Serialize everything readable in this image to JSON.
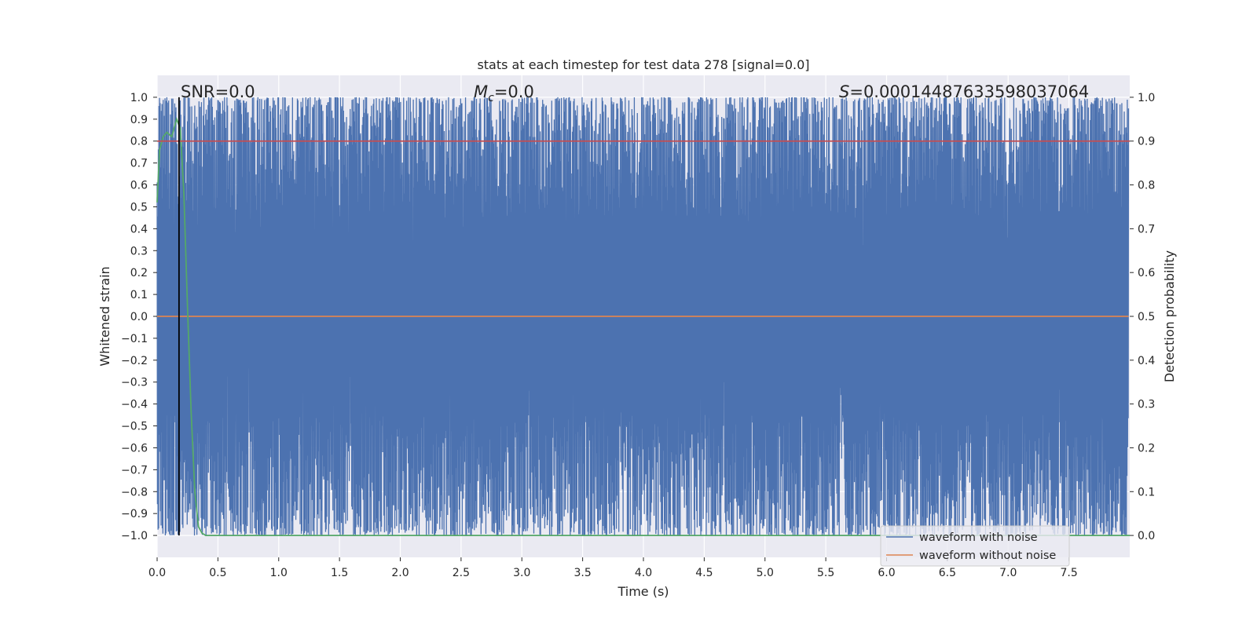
{
  "chart_data": {
    "type": "line",
    "title": "stats at each timestep for test data 278 [signal=0.0]",
    "xlabel": "Time (s)",
    "ylabel": "Whitened strain",
    "y2label": "Detection probability",
    "xlim": [
      0.0,
      8.0
    ],
    "ylim": [
      -1.1,
      1.1
    ],
    "y2lim": [
      -0.05,
      1.05
    ],
    "x_ticks": [
      0.0,
      0.5,
      1.0,
      1.5,
      2.0,
      2.5,
      3.0,
      3.5,
      4.0,
      4.5,
      5.0,
      5.5,
      6.0,
      6.5,
      7.0,
      7.5
    ],
    "x_tick_labels": [
      "0.0",
      "0.5",
      "1.0",
      "1.5",
      "2.0",
      "2.5",
      "3.0",
      "3.5",
      "4.0",
      "4.5",
      "5.0",
      "5.5",
      "6.0",
      "6.5",
      "7.0",
      "7.5"
    ],
    "y_ticks": [
      1.0,
      0.9,
      0.8,
      0.7,
      0.6,
      0.5,
      0.4,
      0.3,
      0.2,
      0.1,
      0.0,
      -0.1,
      -0.2,
      -0.3,
      -0.4,
      -0.5,
      -0.6,
      -0.7,
      -0.8,
      -0.9,
      -1.0
    ],
    "y_tick_labels": [
      "1.0",
      "0.9",
      "0.8",
      "0.7",
      "0.6",
      "0.5",
      "0.4",
      "0.3",
      "0.2",
      "0.1",
      "0.0",
      "−0.1",
      "−0.2",
      "−0.3",
      "−0.4",
      "−0.5",
      "−0.6",
      "−0.7",
      "−0.8",
      "−0.9",
      "−1.0"
    ],
    "y2_ticks": [
      1.0,
      0.9,
      0.8,
      0.7,
      0.6,
      0.5,
      0.4,
      0.3,
      0.2,
      0.1,
      0.0
    ],
    "y2_tick_labels": [
      "1.0",
      "0.9",
      "0.8",
      "0.7",
      "0.6",
      "0.5",
      "0.4",
      "0.3",
      "0.2",
      "0.1",
      "0.0"
    ],
    "grid": true,
    "legend_placement": "lower-right",
    "annotations": {
      "snr": "SNR=0.0",
      "mc_symbol": "M",
      "mc_sub": "c",
      "mc_value": "=0.0",
      "s_symbol": "S",
      "s_value": "=0.00014487633598037064"
    },
    "series": [
      {
        "name": "waveform with noise",
        "color": "#4c72b0",
        "axis": "left",
        "kind": "noise",
        "range": [
          -1.0,
          1.0
        ],
        "x_range": [
          0.0,
          7.99
        ]
      },
      {
        "name": "waveform without noise",
        "color": "#dd8452",
        "axis": "left",
        "x": [
          0.0,
          7.99
        ],
        "y": [
          0.0,
          0.0
        ]
      },
      {
        "color": "#55a868",
        "axis": "right",
        "x": [
          0.0,
          0.02,
          0.05,
          0.08,
          0.12,
          0.16,
          0.19,
          0.22,
          0.25,
          0.28,
          0.31,
          0.34,
          0.37,
          0.4,
          8.0
        ],
        "y": [
          0.76,
          0.88,
          0.91,
          0.92,
          0.91,
          0.95,
          0.93,
          0.78,
          0.52,
          0.28,
          0.1,
          0.02,
          0.005,
          0.0,
          0.0
        ]
      },
      {
        "color": "#c44e52",
        "axis": "right",
        "x": [
          0.0,
          8.0
        ],
        "y": [
          0.9,
          0.9
        ]
      },
      {
        "color": "#000000",
        "axis": "left",
        "kind": "vline",
        "x": 0.18,
        "y": [
          -1.0,
          1.0
        ]
      }
    ]
  }
}
